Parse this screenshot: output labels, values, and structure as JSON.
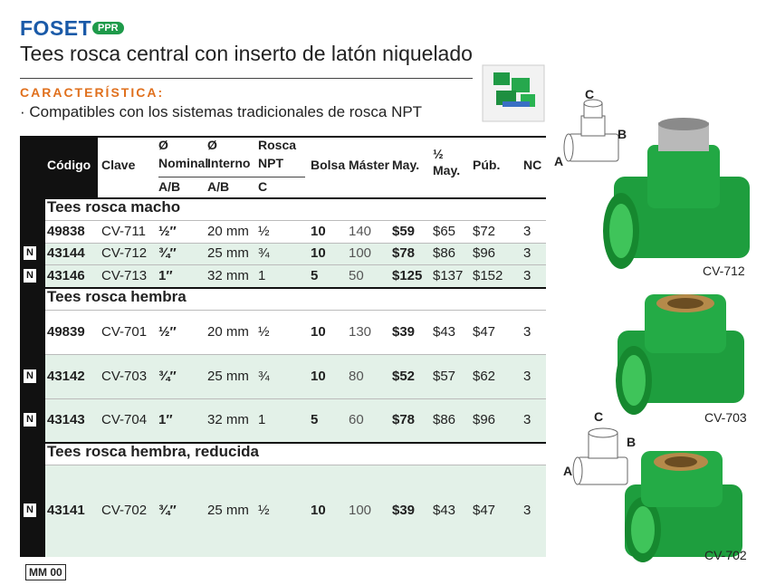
{
  "header": {
    "brand": "FOSET",
    "badge": "PPR",
    "title": "Tees rosca central con inserto de latón niquelado"
  },
  "features": {
    "heading": "CARACTERÍSTICA:",
    "items": [
      "· Compatibles con los sistemas tradicionales de rosca NPT"
    ]
  },
  "table": {
    "columns": [
      {
        "lines": [
          "Código"
        ]
      },
      {
        "lines": [
          "Clave"
        ]
      },
      {
        "lines": [
          "Ø",
          "Nominal"
        ],
        "sub": "A/B"
      },
      {
        "lines": [
          "Ø",
          "Interno"
        ],
        "sub": "A/B"
      },
      {
        "lines": [
          "Rosca",
          "NPT"
        ],
        "sub": "C"
      },
      {
        "lines": [
          "Bolsa"
        ]
      },
      {
        "lines": [
          "Máster"
        ]
      },
      {
        "lines": [
          "May."
        ]
      },
      {
        "lines": [
          "½",
          "May."
        ]
      },
      {
        "lines": [
          "Púb."
        ]
      },
      {
        "lines": [
          "NC"
        ]
      }
    ],
    "sections": [
      {
        "title": "Tees rosca macho",
        "rows": [
          {
            "cells": [
              "49838",
              "CV-711",
              "½″",
              "20 mm",
              "½",
              "10",
              "140",
              "$59",
              "$65",
              "$72",
              "3"
            ]
          },
          {
            "flag": "N",
            "cells": [
              "43144",
              "CV-712",
              "¾″",
              "25 mm",
              "¾",
              "10",
              "100",
              "$78",
              "$86",
              "$96",
              "3"
            ]
          },
          {
            "flag": "N",
            "cells": [
              "43146",
              "CV-713",
              "1″",
              "32 mm",
              "1",
              "5",
              "50",
              "$125",
              "$137",
              "$152",
              "3"
            ]
          }
        ]
      },
      {
        "title": "Tees rosca hembra",
        "rows": [
          {
            "cells": [
              "49839",
              "CV-701",
              "½″",
              "20 mm",
              "½",
              "10",
              "130",
              "$39",
              "$43",
              "$47",
              "3"
            ]
          },
          {
            "flag": "N",
            "cells": [
              "43142",
              "CV-703",
              "¾″",
              "25 mm",
              "¾",
              "10",
              "80",
              "$52",
              "$57",
              "$62",
              "3"
            ]
          },
          {
            "flag": "N",
            "cells": [
              "43143",
              "CV-704",
              "1″",
              "32 mm",
              "1",
              "5",
              "60",
              "$78",
              "$86",
              "$96",
              "3"
            ]
          }
        ]
      },
      {
        "title": "Tees rosca hembra, reducida",
        "rows": [
          {
            "flag": "N",
            "cells": [
              "43141",
              "CV-702",
              "¾″",
              "25 mm",
              "½",
              "10",
              "100",
              "$39",
              "$43",
              "$47",
              "3"
            ]
          }
        ]
      }
    ]
  },
  "diagrams": [
    {
      "labels": [
        "C",
        "B",
        "A"
      ]
    },
    {
      "labels": [
        "C",
        "B",
        "A"
      ]
    }
  ],
  "products": [
    {
      "caption": "CV-712"
    },
    {
      "caption": "CV-703"
    },
    {
      "caption": "CV-702"
    }
  ],
  "footer": {
    "code": "MM 00"
  }
}
